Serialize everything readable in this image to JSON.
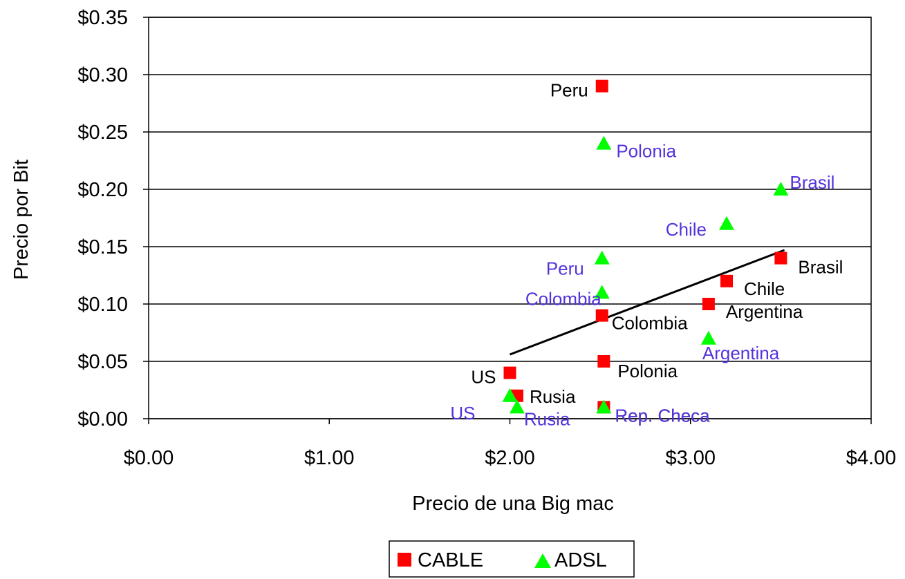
{
  "chart_data": {
    "type": "scatter",
    "title": "",
    "xlabel": "Precio de una Big mac",
    "ylabel": "Precio por Bit",
    "xlim": [
      0,
      4
    ],
    "ylim": [
      0,
      0.35
    ],
    "x_ticks": [
      0,
      1,
      2,
      3,
      4
    ],
    "x_tick_labels": [
      "$0.00",
      "$1.00",
      "$2.00",
      "$3.00",
      "$4.00"
    ],
    "y_ticks": [
      0,
      0.05,
      0.1,
      0.15,
      0.2,
      0.25,
      0.3,
      0.35
    ],
    "y_tick_labels": [
      "$0.00",
      "$0.05",
      "$0.10",
      "$0.15",
      "$0.20",
      "$0.25",
      "$0.30",
      "$0.35"
    ],
    "grid": "horizontal",
    "legend_position": "bottom",
    "series": [
      {
        "name": "CABLE",
        "marker": "square",
        "color": "#ff0000",
        "label_color": "#000000",
        "points": [
          {
            "label": "Peru",
            "x": 2.51,
            "y": 0.29
          },
          {
            "label": "Brasil",
            "x": 3.5,
            "y": 0.14
          },
          {
            "label": "Chile",
            "x": 3.2,
            "y": 0.12
          },
          {
            "label": "Argentina",
            "x": 3.1,
            "y": 0.1
          },
          {
            "label": "Colombia",
            "x": 2.51,
            "y": 0.09
          },
          {
            "label": "Polonia",
            "x": 2.52,
            "y": 0.05
          },
          {
            "label": "US",
            "x": 2.0,
            "y": 0.04
          },
          {
            "label": "Rusia",
            "x": 2.04,
            "y": 0.02
          },
          {
            "label": "Rep. Checa",
            "x": 2.52,
            "y": 0.01
          }
        ]
      },
      {
        "name": "ADSL",
        "marker": "triangle",
        "color": "#00ff00",
        "label_color": "#5533dd",
        "points": [
          {
            "label": "Polonia",
            "x": 2.52,
            "y": 0.24
          },
          {
            "label": "Brasil",
            "x": 3.5,
            "y": 0.2
          },
          {
            "label": "Chile",
            "x": 3.2,
            "y": 0.17
          },
          {
            "label": "Peru",
            "x": 2.51,
            "y": 0.14
          },
          {
            "label": "Colombia",
            "x": 2.51,
            "y": 0.11
          },
          {
            "label": "Argentina",
            "x": 3.1,
            "y": 0.07
          },
          {
            "label": "US",
            "x": 2.0,
            "y": 0.02
          },
          {
            "label": "Rusia",
            "x": 2.04,
            "y": 0.01
          },
          {
            "label": "Rep. Checa",
            "x": 2.52,
            "y": 0.01
          }
        ]
      }
    ],
    "trendline": {
      "color": "#000000",
      "x": [
        2.0,
        3.52
      ],
      "y": [
        0.056,
        0.147
      ]
    }
  }
}
